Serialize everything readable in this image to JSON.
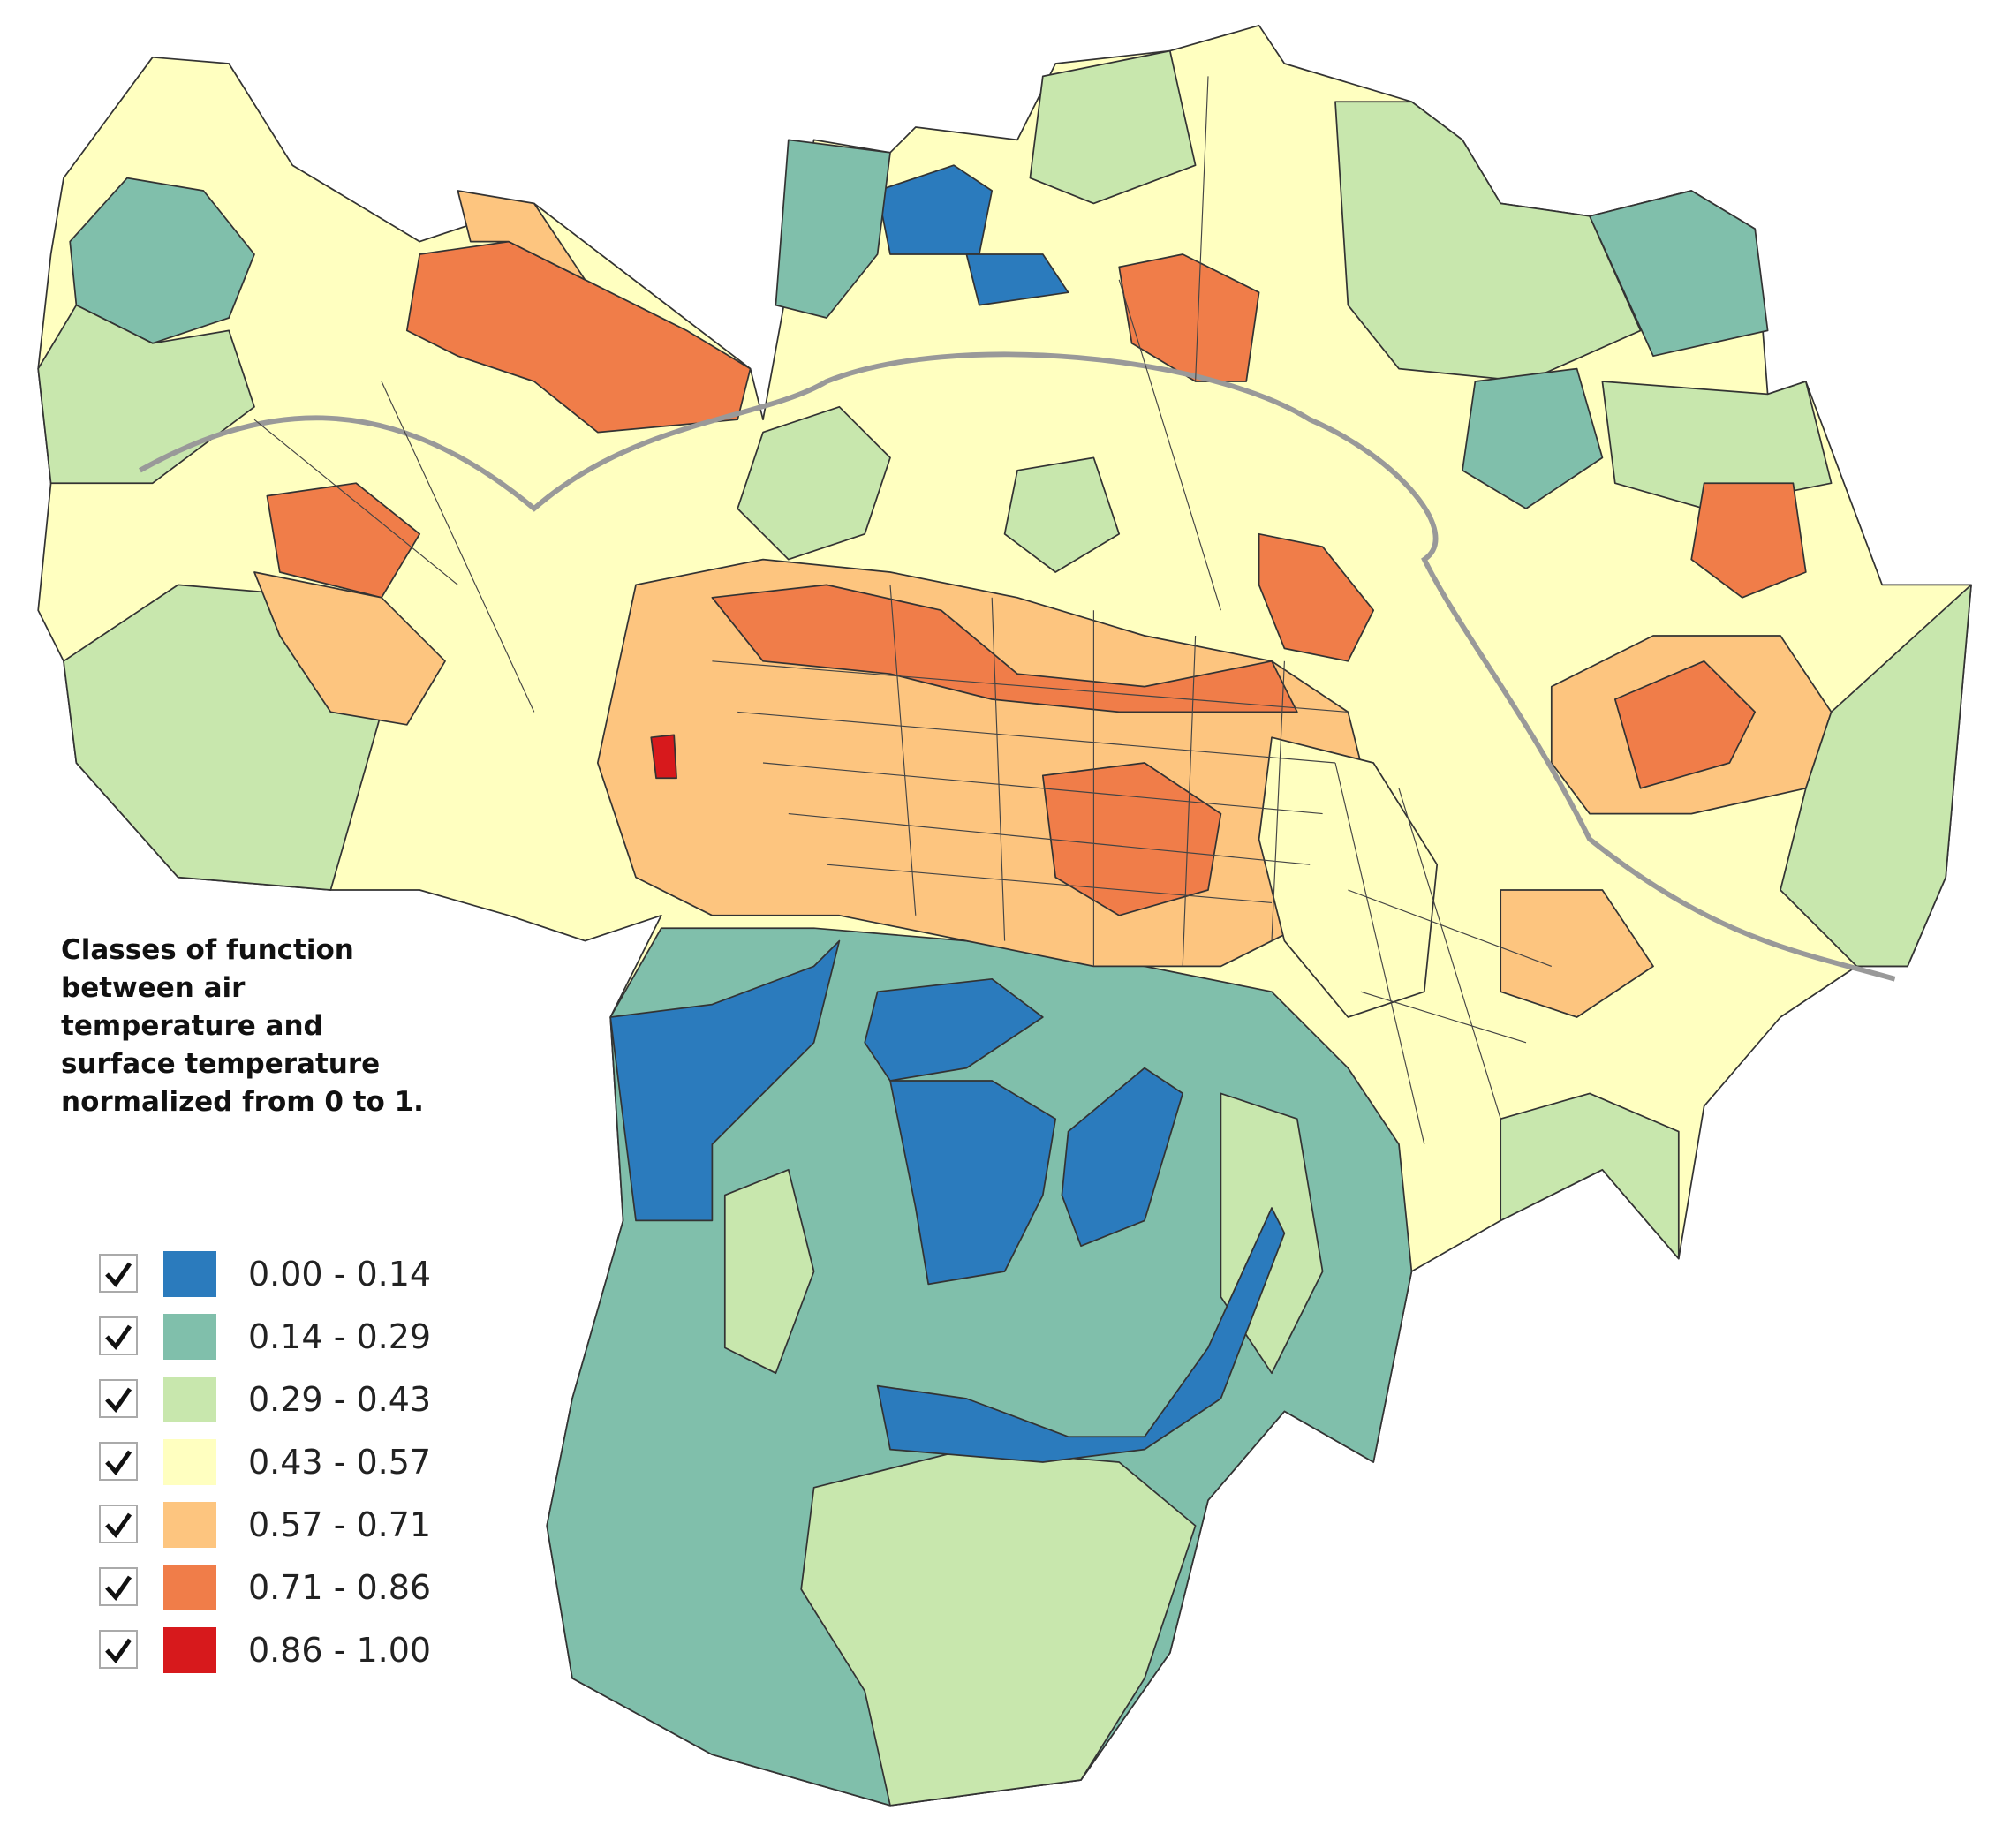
{
  "legend": {
    "title": [
      "Classes of function",
      "between air",
      "temperature and",
      "surface temperature",
      "normalized from 0 to 1."
    ],
    "items": [
      {
        "label": "0.00 - 0.14",
        "color": "#2b7bbd",
        "checked": true
      },
      {
        "label": "0.14 - 0.29",
        "color": "#80bfab",
        "checked": true
      },
      {
        "label": "0.29 - 0.43",
        "color": "#c8e7ad",
        "checked": true
      },
      {
        "label": "0.43 - 0.57",
        "color": "#ffffc0",
        "checked": true
      },
      {
        "label": "0.57 - 0.71",
        "color": "#fdc57f",
        "checked": true
      },
      {
        "label": "0.71 - 0.86",
        "color": "#f07d49",
        "checked": true
      },
      {
        "label": "0.86 - 1.00",
        "color": "#d7191c",
        "checked": true
      }
    ]
  }
}
